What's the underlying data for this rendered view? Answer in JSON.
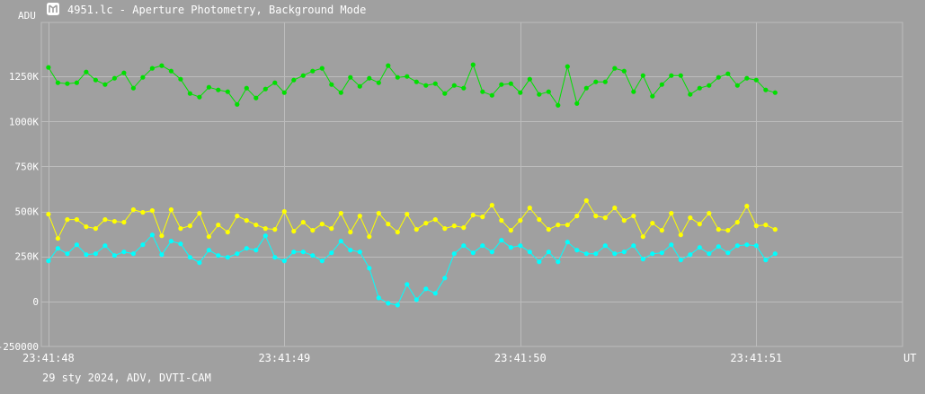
{
  "window": {
    "title": "4951.lc - Aperture Photometry, Background Mode"
  },
  "footer": {
    "info": "29 sty 2024, ADV, DVTI-CAM"
  },
  "colors": {
    "background": "#a0a0a0",
    "grid": "#bcbcbc",
    "text": "#ffffff",
    "series_green": "#00e000",
    "series_yellow": "#ffff00",
    "series_cyan": "#00ffff"
  },
  "chart_data": {
    "type": "line",
    "xlabel": "UT",
    "ylabel": "ADU",
    "ylim": [
      -250000,
      1550000
    ],
    "yticks": [
      -250000,
      0,
      250000,
      500000,
      750000,
      1000000,
      1250000
    ],
    "yticklabels": [
      "-250000",
      "0",
      "250K",
      "500K",
      "750K",
      "1000K",
      "1250K"
    ],
    "xlim_seconds": [
      -0.03,
      3.62
    ],
    "xticks_seconds": [
      0,
      1,
      2,
      3
    ],
    "xticklabels": [
      "23:41:48",
      "23:41:49",
      "23:41:50",
      "23:41:51"
    ],
    "grid": true,
    "sample_spacing_s": 0.04,
    "series": [
      {
        "color": "#00e000",
        "values": [
          1300000,
          1215000,
          1210000,
          1215000,
          1275000,
          1230000,
          1205000,
          1240000,
          1270000,
          1185000,
          1245000,
          1295000,
          1310000,
          1280000,
          1235000,
          1155000,
          1135000,
          1190000,
          1175000,
          1165000,
          1095000,
          1185000,
          1130000,
          1180000,
          1215000,
          1160000,
          1230000,
          1255000,
          1280000,
          1295000,
          1205000,
          1160000,
          1245000,
          1195000,
          1240000,
          1215000,
          1310000,
          1245000,
          1250000,
          1220000,
          1200000,
          1210000,
          1155000,
          1200000,
          1185000,
          1315000,
          1165000,
          1145000,
          1205000,
          1210000,
          1160000,
          1235000,
          1150000,
          1165000,
          1090000,
          1305000,
          1100000,
          1185000,
          1220000,
          1220000,
          1295000,
          1280000,
          1165000,
          1255000,
          1140000,
          1205000,
          1255000,
          1255000,
          1150000,
          1185000,
          1200000,
          1245000,
          1265000,
          1200000,
          1240000,
          1230000,
          1175000,
          1160000
        ]
      },
      {
        "color": "#ffff00",
        "values": [
          485000,
          350000,
          455000,
          455000,
          415000,
          405000,
          455000,
          445000,
          440000,
          510000,
          495000,
          505000,
          365000,
          510000,
          405000,
          420000,
          490000,
          360000,
          425000,
          385000,
          475000,
          450000,
          425000,
          405000,
          400000,
          500000,
          390000,
          440000,
          395000,
          430000,
          405000,
          490000,
          385000,
          475000,
          360000,
          490000,
          430000,
          385000,
          485000,
          400000,
          435000,
          455000,
          405000,
          420000,
          410000,
          480000,
          470000,
          535000,
          450000,
          395000,
          450000,
          520000,
          455000,
          400000,
          425000,
          425000,
          475000,
          560000,
          475000,
          465000,
          520000,
          450000,
          475000,
          360000,
          435000,
          395000,
          490000,
          370000,
          465000,
          430000,
          490000,
          400000,
          395000,
          440000,
          530000,
          420000,
          425000,
          400000
        ]
      },
      {
        "color": "#00ffff",
        "values": [
          225000,
          295000,
          265000,
          315000,
          260000,
          265000,
          310000,
          255000,
          275000,
          265000,
          315000,
          370000,
          260000,
          335000,
          320000,
          245000,
          215000,
          285000,
          255000,
          245000,
          265000,
          295000,
          285000,
          365000,
          245000,
          225000,
          275000,
          275000,
          255000,
          225000,
          270000,
          335000,
          285000,
          275000,
          185000,
          20000,
          -10000,
          -20000,
          95000,
          10000,
          70000,
          45000,
          130000,
          265000,
          310000,
          270000,
          310000,
          275000,
          340000,
          300000,
          310000,
          275000,
          220000,
          275000,
          220000,
          330000,
          285000,
          265000,
          265000,
          310000,
          265000,
          275000,
          310000,
          235000,
          265000,
          270000,
          315000,
          230000,
          260000,
          300000,
          265000,
          305000,
          270000,
          310000,
          315000,
          310000,
          230000,
          265000
        ]
      }
    ]
  }
}
